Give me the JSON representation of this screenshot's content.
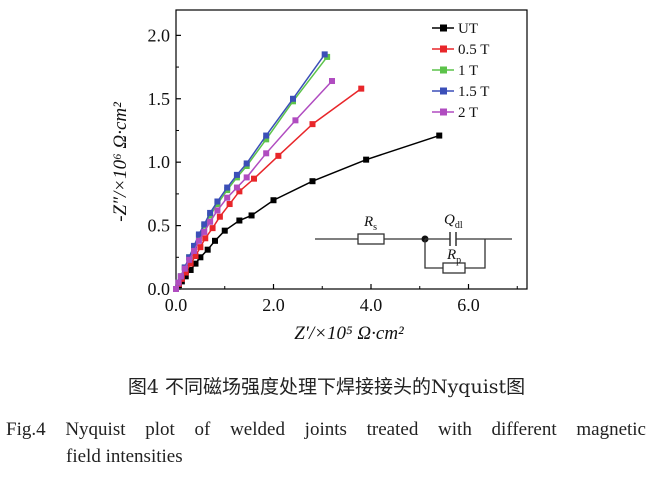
{
  "chart_data": {
    "type": "line",
    "xlabel": "Z′/×10⁵ Ω·cm²",
    "ylabel": "-Z″/×10⁶ Ω·cm²",
    "xlim": [
      0,
      7.2
    ],
    "ylim": [
      0,
      2.2
    ],
    "x_ticks": [
      "0.0",
      "2.0",
      "4.0",
      "6.0"
    ],
    "x_tick_values": [
      0,
      2,
      4,
      6
    ],
    "y_ticks": [
      "0.0",
      "0.5",
      "1.0",
      "1.5",
      "2.0"
    ],
    "y_tick_values": [
      0,
      0.5,
      1.0,
      1.5,
      2.0
    ],
    "legend_placement": "top-right",
    "series": [
      {
        "name": "UT",
        "color": "#000000",
        "x": [
          0,
          0.06,
          0.12,
          0.2,
          0.3,
          0.4,
          0.5,
          0.65,
          0.8,
          1.0,
          1.3,
          1.55,
          2.0,
          2.8,
          3.9,
          5.4
        ],
        "y": [
          0,
          0.03,
          0.06,
          0.1,
          0.15,
          0.2,
          0.25,
          0.31,
          0.38,
          0.46,
          0.54,
          0.58,
          0.7,
          0.85,
          1.02,
          1.21
        ]
      },
      {
        "name": "0.5 T",
        "color": "#e8262a",
        "x": [
          0,
          0.06,
          0.12,
          0.2,
          0.3,
          0.4,
          0.5,
          0.6,
          0.75,
          0.9,
          1.1,
          1.3,
          1.6,
          2.1,
          2.8,
          3.8
        ],
        "y": [
          0,
          0.04,
          0.08,
          0.13,
          0.2,
          0.26,
          0.33,
          0.4,
          0.48,
          0.57,
          0.67,
          0.77,
          0.87,
          1.05,
          1.3,
          1.58
        ]
      },
      {
        "name": "1 T",
        "color": "#5cc34a",
        "x": [
          0,
          0.05,
          0.1,
          0.18,
          0.27,
          0.37,
          0.47,
          0.58,
          0.7,
          0.85,
          1.05,
          1.25,
          1.45,
          1.85,
          2.4,
          3.1
        ],
        "y": [
          0,
          0.05,
          0.1,
          0.17,
          0.25,
          0.33,
          0.42,
          0.5,
          0.58,
          0.67,
          0.78,
          0.88,
          0.97,
          1.18,
          1.48,
          1.83
        ]
      },
      {
        "name": "1.5 T",
        "color": "#3b4fb8",
        "x": [
          0,
          0.05,
          0.1,
          0.18,
          0.27,
          0.37,
          0.47,
          0.58,
          0.7,
          0.85,
          1.05,
          1.25,
          1.45,
          1.85,
          2.4,
          3.05
        ],
        "y": [
          0,
          0.05,
          0.1,
          0.17,
          0.25,
          0.34,
          0.43,
          0.51,
          0.6,
          0.69,
          0.8,
          0.9,
          0.99,
          1.21,
          1.5,
          1.85
        ]
      },
      {
        "name": "2 T",
        "color": "#b04cc0",
        "x": [
          0,
          0.05,
          0.1,
          0.18,
          0.27,
          0.37,
          0.47,
          0.58,
          0.7,
          0.85,
          1.05,
          1.25,
          1.45,
          1.85,
          2.45,
          3.2
        ],
        "y": [
          0,
          0.05,
          0.1,
          0.16,
          0.23,
          0.3,
          0.38,
          0.45,
          0.53,
          0.62,
          0.72,
          0.8,
          0.88,
          1.07,
          1.33,
          1.64
        ]
      }
    ],
    "circuit": {
      "rs_label": "R",
      "rs_sub": "s",
      "q_label": "Q",
      "q_sub": "dl",
      "rp_label": "R",
      "rp_sub": "p"
    }
  },
  "caption": {
    "cn": "图4 不同磁场强度处理下焊接接头的Nyquist图",
    "en_line1": "Fig.4 Nyquist plot of welded joints treated with different magnetic",
    "en_line2": "field intensities"
  }
}
